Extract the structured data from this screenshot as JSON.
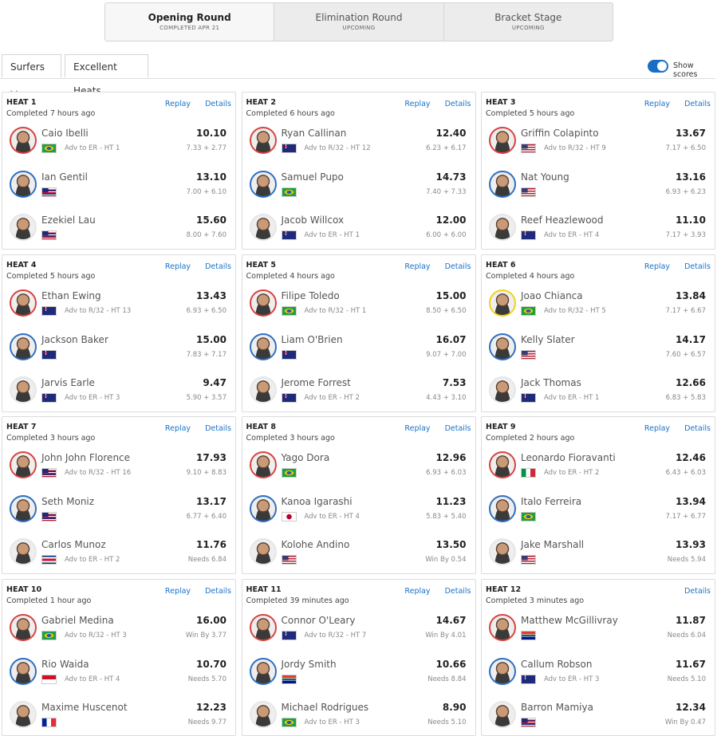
{
  "tabs": [
    {
      "label": "Opening Round",
      "status": "COMPLETED APR 21",
      "active": true
    },
    {
      "label": "Elimination Round",
      "status": "UPCOMING"
    },
    {
      "label": "Bracket Stage",
      "status": "UPCOMING"
    }
  ],
  "filters": [
    "Surfers",
    "Excellent Heats"
  ],
  "toggle": "Show scores",
  "heats": [
    {
      "title": "HEAT 1",
      "status": "Completed 7 hours ago",
      "links": [
        "Replay",
        "Details"
      ],
      "surfers": [
        {
          "name": "Caio Ibelli",
          "note": "Adv to ER - HT 1",
          "score": "10.10",
          "detail": "7.33 + 2.77",
          "flag": "BR",
          "jersey": "#d9433f"
        },
        {
          "name": "Ian Gentil",
          "score": "13.10",
          "detail": "7.00 + 6.10",
          "flag": "HI",
          "jersey": "#2f6fc0"
        },
        {
          "name": "Ezekiel Lau",
          "score": "15.60",
          "detail": "8.00 + 7.60",
          "flag": "HI",
          "jersey": "#e6e6e6"
        }
      ]
    },
    {
      "title": "HEAT 2",
      "status": "Completed 6 hours ago",
      "links": [
        "Replay",
        "Details"
      ],
      "surfers": [
        {
          "name": "Ryan Callinan",
          "note": "Adv to R/32 - HT 12",
          "score": "12.40",
          "detail": "6.23 + 6.17",
          "flag": "AU",
          "jersey": "#d9433f"
        },
        {
          "name": "Samuel Pupo",
          "score": "14.73",
          "detail": "7.40 + 7.33",
          "flag": "BR",
          "jersey": "#2f6fc0"
        },
        {
          "name": "Jacob Willcox",
          "note": "Adv to ER - HT 1",
          "score": "12.00",
          "detail": "6.00 + 6.00",
          "flag": "AU",
          "jersey": "#e6e6e6"
        }
      ]
    },
    {
      "title": "HEAT 3",
      "status": "Completed 5 hours ago",
      "links": [
        "Replay",
        "Details"
      ],
      "surfers": [
        {
          "name": "Griffin Colapinto",
          "note": "Adv to R/32 - HT 9",
          "score": "13.67",
          "detail": "7.17 + 6.50",
          "flag": "US",
          "jersey": "#d9433f"
        },
        {
          "name": "Nat Young",
          "score": "13.16",
          "detail": "6.93 + 6.23",
          "flag": "US",
          "jersey": "#2f6fc0"
        },
        {
          "name": "Reef Heazlewood",
          "note": "Adv to ER - HT 4",
          "score": "11.10",
          "detail": "7.17 + 3.93",
          "flag": "AU",
          "jersey": "#e6e6e6"
        }
      ]
    },
    {
      "title": "HEAT 4",
      "status": "Completed 5 hours ago",
      "links": [
        "Replay",
        "Details"
      ],
      "surfers": [
        {
          "name": "Ethan Ewing",
          "note": "Adv to R/32 - HT 13",
          "score": "13.43",
          "detail": "6.93 + 6.50",
          "flag": "AU",
          "jersey": "#d9433f"
        },
        {
          "name": "Jackson Baker",
          "score": "15.00",
          "detail": "7.83 + 7.17",
          "flag": "AU",
          "jersey": "#2f6fc0"
        },
        {
          "name": "Jarvis Earle",
          "note": "Adv to ER - HT 3",
          "score": "9.47",
          "detail": "5.90 + 3.57",
          "flag": "AU",
          "jersey": "#e6e6e6"
        }
      ]
    },
    {
      "title": "HEAT 5",
      "status": "Completed 4 hours ago",
      "links": [
        "Replay",
        "Details"
      ],
      "surfers": [
        {
          "name": "Filipe Toledo",
          "note": "Adv to R/32 - HT 1",
          "score": "15.00",
          "detail": "8.50 + 6.50",
          "flag": "BR",
          "jersey": "#d9433f"
        },
        {
          "name": "Liam O'Brien",
          "score": "16.07",
          "detail": "9.07 + 7.00",
          "flag": "AU",
          "jersey": "#2f6fc0"
        },
        {
          "name": "Jerome Forrest",
          "note": "Adv to ER - HT 2",
          "score": "7.53",
          "detail": "4.43 + 3.10",
          "flag": "AU",
          "jersey": "#e6e6e6"
        }
      ]
    },
    {
      "title": "HEAT 6",
      "status": "Completed 4 hours ago",
      "links": [
        "Replay",
        "Details"
      ],
      "surfers": [
        {
          "name": "Joao Chianca",
          "note": "Adv to R/32 - HT 5",
          "score": "13.84",
          "detail": "7.17 + 6.67",
          "flag": "BR",
          "jersey": "#f2d21b"
        },
        {
          "name": "Kelly Slater",
          "score": "14.17",
          "detail": "7.60 + 6.57",
          "flag": "US",
          "jersey": "#2f6fc0"
        },
        {
          "name": "Jack Thomas",
          "note": "Adv to ER - HT 1",
          "score": "12.66",
          "detail": "6.83 + 5.83",
          "flag": "AU",
          "jersey": "#e6e6e6"
        }
      ]
    },
    {
      "title": "HEAT 7",
      "status": "Completed 3 hours ago",
      "links": [
        "Replay",
        "Details"
      ],
      "surfers": [
        {
          "name": "John John Florence",
          "note": "Adv to R/32 - HT 16",
          "score": "17.93",
          "detail": "9.10 + 8.83",
          "flag": "HI",
          "jersey": "#d9433f"
        },
        {
          "name": "Seth Moniz",
          "score": "13.17",
          "detail": "6.77 + 6.40",
          "flag": "HI",
          "jersey": "#2f6fc0"
        },
        {
          "name": "Carlos Munoz",
          "note": "Adv to ER - HT 2",
          "score": "11.76",
          "detail": "Needs 6.84",
          "flag": "CR",
          "jersey": "#e6e6e6"
        }
      ]
    },
    {
      "title": "HEAT 8",
      "status": "Completed 3 hours ago",
      "links": [
        "Replay",
        "Details"
      ],
      "surfers": [
        {
          "name": "Yago Dora",
          "score": "12.96",
          "detail": "6.93 + 6.03",
          "flag": "BR",
          "jersey": "#d9433f"
        },
        {
          "name": "Kanoa Igarashi",
          "note": "Adv to ER - HT 4",
          "score": "11.23",
          "detail": "5.83 + 5.40",
          "flag": "JP",
          "jersey": "#2f6fc0"
        },
        {
          "name": "Kolohe Andino",
          "score": "13.50",
          "detail": "Win By 0.54",
          "flag": "US",
          "jersey": "#e6e6e6"
        }
      ]
    },
    {
      "title": "HEAT 9",
      "status": "Completed 2 hours ago",
      "links": [
        "Replay",
        "Details"
      ],
      "surfers": [
        {
          "name": "Leonardo Fioravanti",
          "note": "Adv to ER - HT 2",
          "score": "12.46",
          "detail": "6.43 + 6.03",
          "flag": "IT",
          "jersey": "#d9433f"
        },
        {
          "name": "Italo Ferreira",
          "score": "13.94",
          "detail": "7.17 + 6.77",
          "flag": "BR",
          "jersey": "#2f6fc0"
        },
        {
          "name": "Jake Marshall",
          "score": "13.93",
          "detail": "Needs 5.94",
          "flag": "US",
          "jersey": "#e6e6e6"
        }
      ]
    },
    {
      "title": "HEAT 10",
      "status": "Completed 1 hour ago",
      "links": [
        "Replay",
        "Details"
      ],
      "surfers": [
        {
          "name": "Gabriel Medina",
          "note": "Adv to R/32 - HT 3",
          "score": "16.00",
          "detail": "Win By 3.77",
          "flag": "BR",
          "jersey": "#d9433f"
        },
        {
          "name": "Rio Waida",
          "note": "Adv to ER - HT 4",
          "score": "10.70",
          "detail": "Needs 5.70",
          "flag": "ID",
          "jersey": "#2f6fc0"
        },
        {
          "name": "Maxime Huscenot",
          "score": "12.23",
          "detail": "Needs 9.77",
          "flag": "FR",
          "jersey": "#e6e6e6"
        }
      ]
    },
    {
      "title": "HEAT 11",
      "status": "Completed 39 minutes ago",
      "links": [
        "Replay",
        "Details"
      ],
      "surfers": [
        {
          "name": "Connor O'Leary",
          "note": "Adv to R/32 - HT 7",
          "score": "14.67",
          "detail": "Win By 4.01",
          "flag": "AU",
          "jersey": "#d9433f"
        },
        {
          "name": "Jordy Smith",
          "score": "10.66",
          "detail": "Needs 8.84",
          "flag": "ZA",
          "jersey": "#2f6fc0"
        },
        {
          "name": "Michael Rodrigues",
          "note": "Adv to ER - HT 3",
          "score": "8.90",
          "detail": "Needs 5.10",
          "flag": "BR",
          "jersey": "#e6e6e6"
        }
      ]
    },
    {
      "title": "HEAT 12",
      "status": "Completed 3 minutes ago",
      "links": [
        "Details"
      ],
      "surfers": [
        {
          "name": "Matthew McGillivray",
          "score": "11.87",
          "detail": "Needs 6.04",
          "flag": "ZA",
          "jersey": "#d9433f"
        },
        {
          "name": "Callum Robson",
          "note": "Adv to ER - HT 3",
          "score": "11.67",
          "detail": "Needs 5.10",
          "flag": "AU",
          "jersey": "#2f6fc0"
        },
        {
          "name": "Barron Mamiya",
          "score": "12.34",
          "detail": "Win By 0.47",
          "flag": "HI",
          "jersey": "#e6e6e6"
        }
      ]
    }
  ]
}
